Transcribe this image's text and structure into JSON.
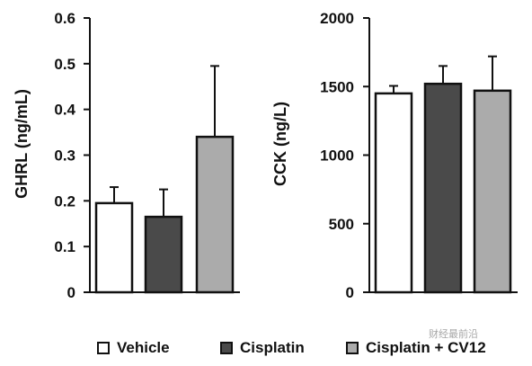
{
  "chart_data": [
    {
      "type": "bar",
      "ylabel": "GHRL (ng/mL)",
      "ylim": [
        0,
        0.6
      ],
      "yticks": [
        "0",
        "0.1",
        "0.2",
        "0.3",
        "0.4",
        "0.5",
        "0.6"
      ],
      "categories": [
        "Vehicle",
        "Cisplatin",
        "Cisplatin + CV12"
      ],
      "values": [
        0.195,
        0.165,
        0.34
      ],
      "errors": [
        0.035,
        0.06,
        0.155
      ],
      "colors": [
        "#ffffff",
        "#4a4a4a",
        "#ababab"
      ]
    },
    {
      "type": "bar",
      "ylabel": "CCK (ng/L)",
      "ylim": [
        0,
        2000
      ],
      "yticks": [
        "0",
        "500",
        "1000",
        "1500",
        "2000"
      ],
      "categories": [
        "Vehicle",
        "Cisplatin",
        "Cisplatin + CV12"
      ],
      "values": [
        1450,
        1520,
        1470
      ],
      "errors": [
        55,
        130,
        250
      ],
      "colors": [
        "#ffffff",
        "#4a4a4a",
        "#ababab"
      ]
    }
  ],
  "legend": {
    "items": [
      {
        "label": "Vehicle",
        "color": "#ffffff"
      },
      {
        "label": "Cisplatin",
        "color": "#4a4a4a"
      },
      {
        "label": "Cisplatin + CV12",
        "color": "#ababab"
      }
    ]
  },
  "watermark": {
    "text": "财经最前沿"
  }
}
